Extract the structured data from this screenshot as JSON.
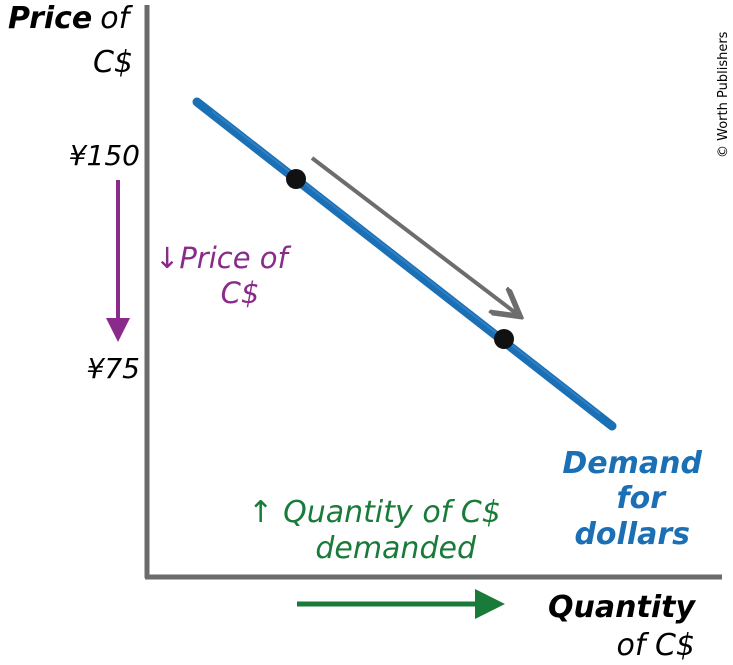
{
  "y_axis": {
    "title_bold": "Price",
    "title_rest": "of",
    "title_line2": "C$",
    "ticks": [
      "¥150",
      "¥75"
    ]
  },
  "x_axis": {
    "title_line1": "Quantity",
    "title_line2": "of C$"
  },
  "curve_label": [
    "Demand",
    "for",
    "dollars"
  ],
  "annotations": {
    "price_change": {
      "arrow": "↓",
      "lines": [
        "Price of",
        "C$"
      ]
    },
    "quantity_change": {
      "arrow": "↑",
      "lines": [
        "Quantity of C$",
        "demanded"
      ]
    }
  },
  "credit": "© Worth Publishers"
}
